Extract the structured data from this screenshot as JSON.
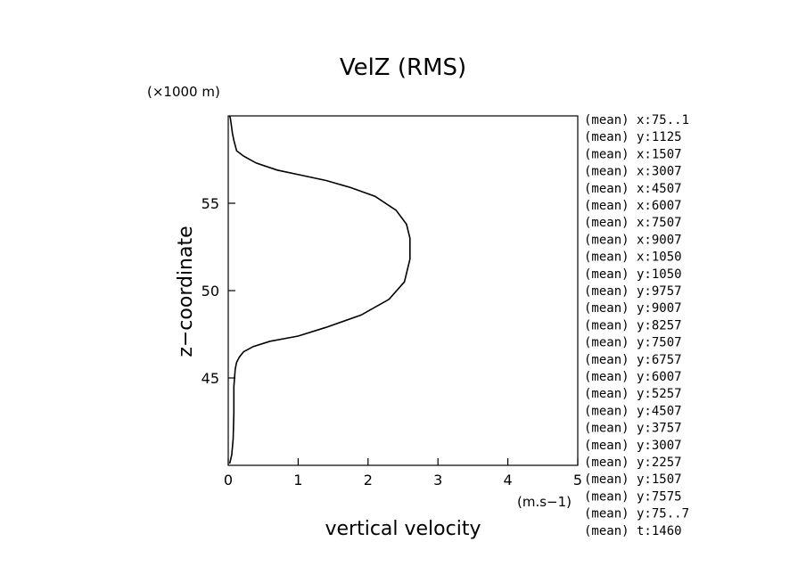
{
  "chart_data": {
    "type": "line",
    "title": "VelZ (RMS)",
    "xlabel": "vertical velocity",
    "xunit": "(m.s−1)",
    "ylabel": "z−coordinate",
    "yunit": "(×1000 m)",
    "xlim": [
      0,
      5
    ],
    "ylim": [
      40,
      60
    ],
    "xticks": [
      0,
      1,
      2,
      3,
      4,
      5
    ],
    "yticks": [
      45,
      50,
      55
    ],
    "grid": false,
    "series": [
      {
        "x": [
          0.02,
          0.05,
          0.07,
          0.08,
          0.08,
          0.1,
          0.12,
          0.16,
          0.22,
          0.36,
          0.6,
          1.0,
          1.4,
          1.9,
          2.3,
          2.52,
          2.6,
          2.6,
          2.55,
          2.4,
          2.1,
          1.75,
          1.4,
          1.05,
          0.7,
          0.4,
          0.22,
          0.12,
          0.08,
          0.06,
          0.05,
          0.04,
          0.03,
          0.02
        ],
        "y": [
          40.1,
          40.6,
          41.5,
          43.0,
          44.5,
          45.5,
          45.9,
          46.2,
          46.5,
          46.8,
          47.1,
          47.4,
          47.9,
          48.6,
          49.5,
          50.5,
          51.8,
          53.0,
          53.8,
          54.6,
          55.4,
          55.9,
          56.3,
          56.6,
          56.9,
          57.3,
          57.7,
          58.0,
          58.6,
          59.0,
          59.3,
          59.6,
          59.85,
          60.0
        ]
      }
    ]
  },
  "legend_labels": [
    "(mean) x:75..1",
    "(mean) y:1125",
    "(mean) x:1507",
    "(mean) x:3007",
    "(mean) x:4507",
    "(mean) x:6007",
    "(mean) x:7507",
    "(mean) x:9007",
    "(mean) x:1050",
    "(mean) y:1050",
    "(mean) y:9757",
    "(mean) y:9007",
    "(mean) y:8257",
    "(mean) y:7507",
    "(mean) y:6757",
    "(mean) y:6007",
    "(mean) y:5257",
    "(mean) y:4507",
    "(mean) y:3757",
    "(mean) y:3007",
    "(mean) y:2257",
    "(mean) y:1507",
    "(mean) y:7575",
    "(mean) y:75..7",
    "(mean) t:1460"
  ]
}
